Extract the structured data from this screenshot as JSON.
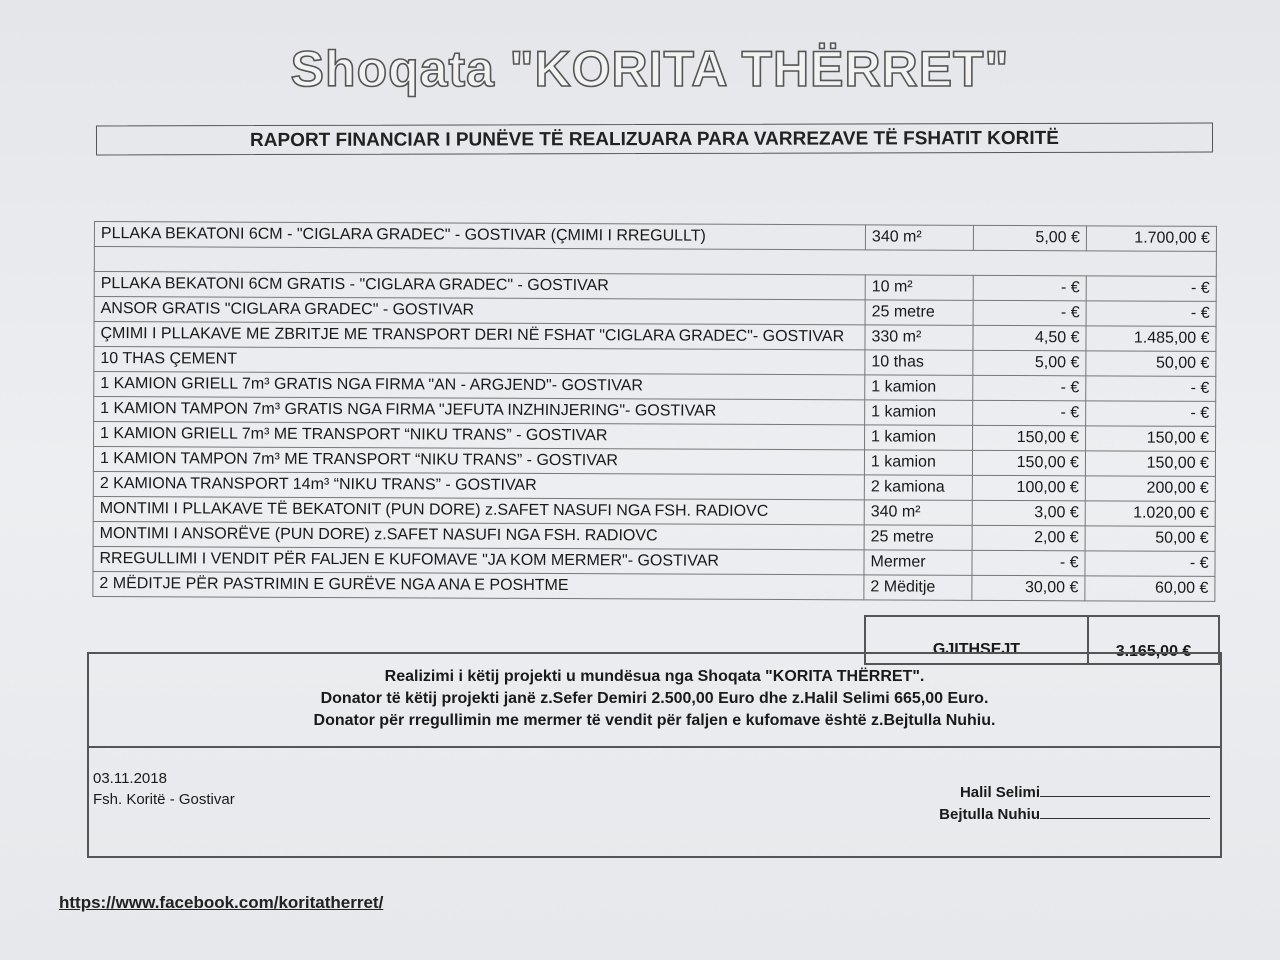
{
  "header": {
    "title": "Shoqata \"KORITA THËRRET\"",
    "subtitle": "RAPORT FINANCIAR I PUNËVE TË REALIZUARA PARA VARREZAVE TË FSHATIT KORITË"
  },
  "first_row": {
    "description": "PLLAKA BEKATONI 6CM - \"CIGLARA GRADEC\" - GOSTIVAR (ÇMIMI I RREGULLT)",
    "quantity": "340 m²",
    "unit_price": "5,00 €",
    "total": "1.700,00 €"
  },
  "rows": [
    {
      "description": "PLLAKA BEKATONI 6CM GRATIS - \"CIGLARA GRADEC\" - GOSTIVAR",
      "quantity": "10 m²",
      "unit_price": "-  €",
      "total": "-  €"
    },
    {
      "description": "ANSOR GRATIS \"CIGLARA GRADEC\" - GOSTIVAR",
      "quantity": "25 metre",
      "unit_price": "-  €",
      "total": "-  €"
    },
    {
      "description": "ÇMIMI I PLLAKAVE ME ZBRITJE ME TRANSPORT DERI NË FSHAT \"CIGLARA GRADEC\"- GOSTIVAR",
      "quantity": "330 m²",
      "unit_price": "4,50 €",
      "total": "1.485,00 €"
    },
    {
      "description": "10 THAS ÇEMENT",
      "quantity": "10 thas",
      "unit_price": "5,00 €",
      "total": "50,00 €"
    },
    {
      "description": "1 KAMION GRIELL 7m³ GRATIS NGA FIRMA \"AN - ARGJEND\"- GOSTIVAR",
      "quantity": "1 kamion",
      "unit_price": "-  €",
      "total": "-  €"
    },
    {
      "description": "1 KAMION TAMPON 7m³ GRATIS NGA FIRMA \"JEFUTA INZHINJERING\"- GOSTIVAR",
      "quantity": "1 kamion",
      "unit_price": "-  €",
      "total": "-  €"
    },
    {
      "description": "1 KAMION GRIELL 7m³ ME TRANSPORT “NIKU TRANS” - GOSTIVAR",
      "quantity": "1 kamion",
      "unit_price": "150,00 €",
      "total": "150,00 €"
    },
    {
      "description": "1 KAMION TAMPON 7m³ ME TRANSPORT “NIKU TRANS” - GOSTIVAR",
      "quantity": "1 kamion",
      "unit_price": "150,00 €",
      "total": "150,00 €"
    },
    {
      "description": "2 KAMIONA TRANSPORT 14m³ “NIKU TRANS” - GOSTIVAR",
      "quantity": "2 kamiona",
      "unit_price": "100,00 €",
      "total": "200,00 €"
    },
    {
      "description": "MONTIMI I PLLAKAVE TË BEKATONIT (PUN DORE) z.SAFET NASUFI NGA FSH. RADIOVC",
      "quantity": "340 m²",
      "unit_price": "3,00 €",
      "total": "1.020,00 €"
    },
    {
      "description": "MONTIMI I ANSORËVE (PUN DORE) z.SAFET NASUFI NGA FSH. RADIOVC",
      "quantity": "25 metre",
      "unit_price": "2,00 €",
      "total": "50,00 €"
    },
    {
      "description": "RREGULLIMI I VENDIT PËR FALJEN E KUFOMAVE \"JA KOM MERMER\"- GOSTIVAR",
      "quantity": "Mermer",
      "unit_price": "-  €",
      "total": "-  €"
    },
    {
      "description": "2 MËDITJE PËR PASTRIMIN E GURËVE NGA ANA E POSHTME",
      "quantity": "2 Mëditje",
      "unit_price": "30,00 €",
      "total": "60,00 €"
    }
  ],
  "total": {
    "label": "GJITHSEJT",
    "value": "3.165,00 €"
  },
  "note": {
    "line1": "Realizimi i këtij projekti u mundësua nga Shoqata \"KORITA THËRRET\".",
    "line2": "Donator të këtij projekti janë z.Sefer Demiri 2.500,00 Euro dhe z.Halil Selimi 665,00 Euro.",
    "line3": "Donator për rregullimin me mermer të vendit për faljen e kufomave është z.Bejtulla Nuhiu."
  },
  "footer": {
    "date": "03.11.2018",
    "place": "Fsh. Koritë - Gostivar",
    "signer1": "Halil Selimi",
    "signer2": "Bejtulla Nuhiu",
    "link": "https://www.facebook.com/koritatherret/"
  }
}
